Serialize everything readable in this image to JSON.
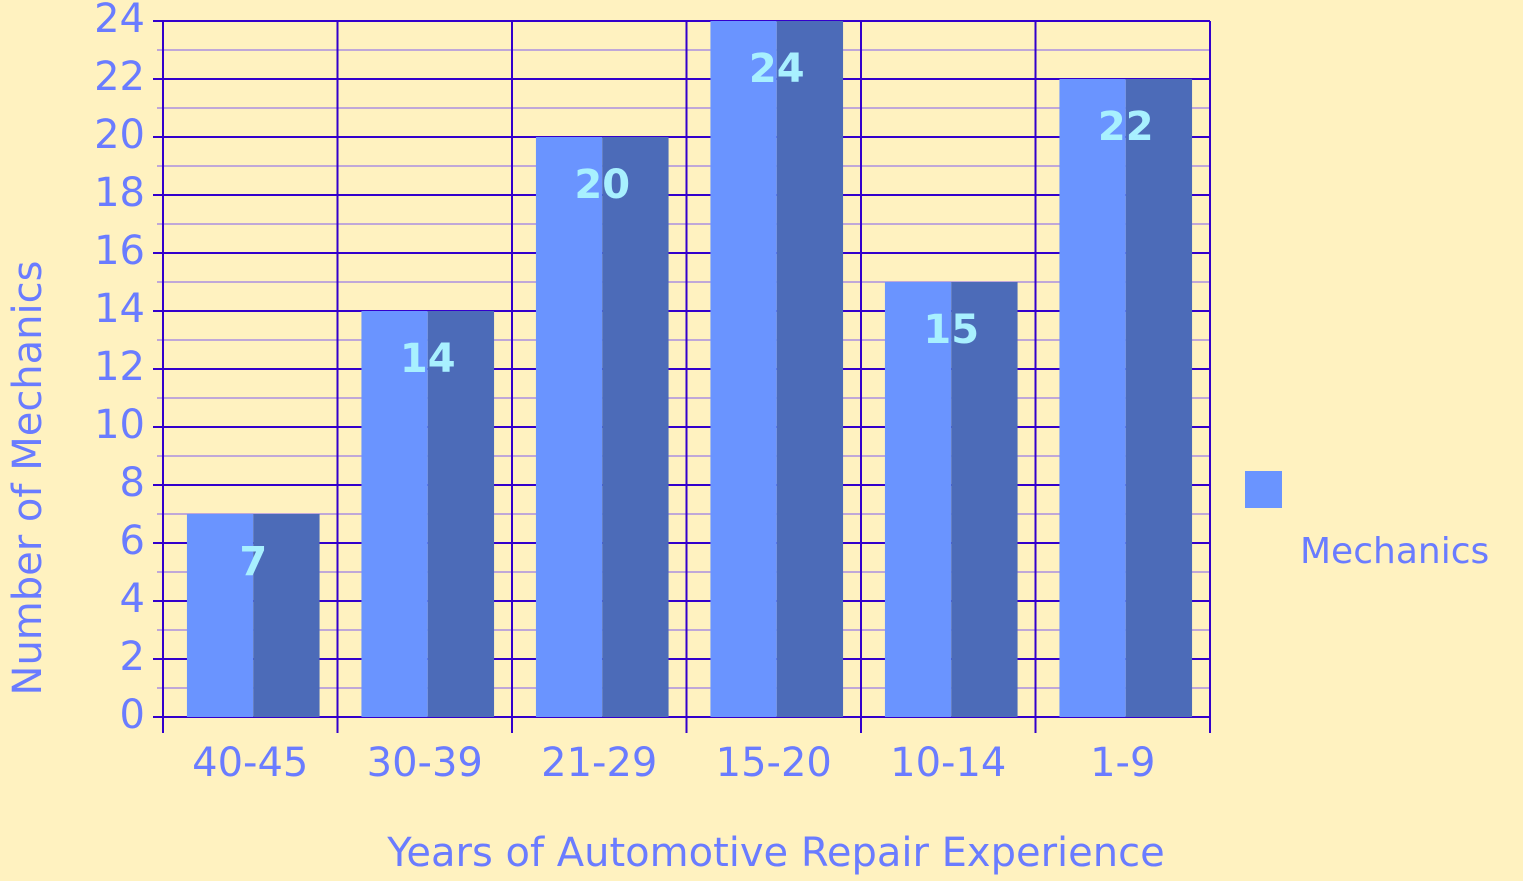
{
  "chart_data": {
    "type": "bar",
    "x_label": "Years of Automotive Repair Experience",
    "y_label": "Number of Mechanics",
    "categories": [
      "40-45",
      "30-39",
      "21-29",
      "15-20",
      "10-14",
      "1-9"
    ],
    "series": [
      {
        "name": "Mechanics",
        "color": "#6a94ff",
        "values": [
          7,
          14,
          20,
          24,
          15,
          22
        ]
      }
    ],
    "ylim": [
      0,
      24
    ],
    "yticks": [
      0,
      2,
      4,
      6,
      8,
      10,
      12,
      14,
      16,
      18,
      20,
      22,
      24
    ],
    "grid": true,
    "legend": "right"
  }
}
